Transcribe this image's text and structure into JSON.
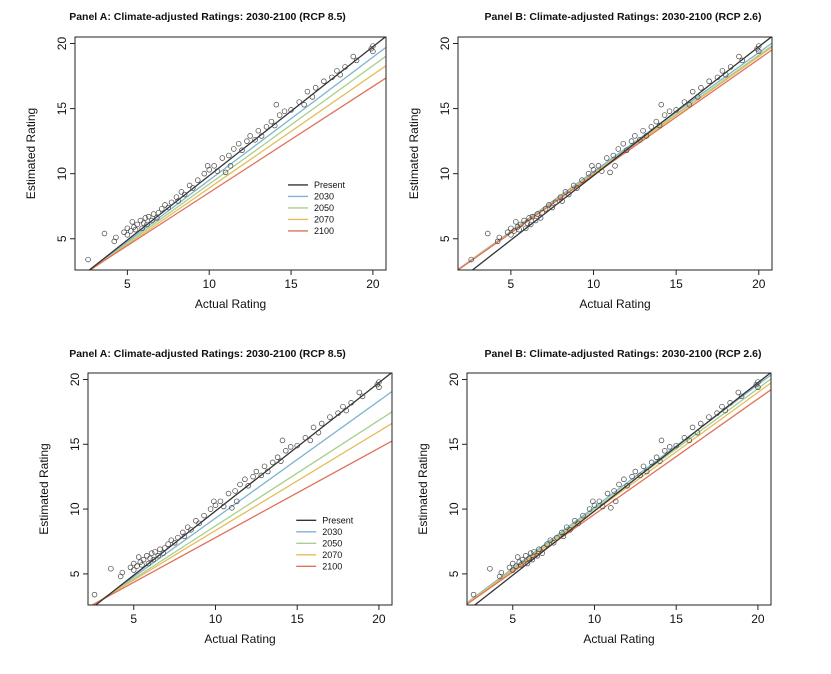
{
  "chart_data": [
    {
      "type": "scatter",
      "title": "Panel A: Climate-adjusted Ratings: 2030-2100 (RCP 8.5)",
      "xlabel": "Actual Rating",
      "ylabel": "Estimated Rating",
      "xlim": [
        1.8,
        20.8
      ],
      "ylim": [
        2.6,
        20.5
      ],
      "xticks": [
        5,
        10,
        15,
        20
      ],
      "yticks": [
        5,
        10,
        15,
        20
      ],
      "legend_position": "bottom-right",
      "points": [
        [
          2.6,
          3.4
        ],
        [
          3.6,
          5.4
        ],
        [
          4.2,
          4.8
        ],
        [
          4.3,
          5.1
        ],
        [
          4.8,
          5.5
        ],
        [
          5.0,
          5.3
        ],
        [
          5.0,
          5.8
        ],
        [
          5.2,
          5.6
        ],
        [
          5.3,
          6.3
        ],
        [
          5.4,
          5.9
        ],
        [
          5.5,
          5.7
        ],
        [
          5.6,
          6.1
        ],
        [
          5.8,
          6.4
        ],
        [
          5.9,
          5.8
        ],
        [
          6.0,
          6.2
        ],
        [
          6.1,
          6.6
        ],
        [
          6.2,
          6.1
        ],
        [
          6.3,
          6.7
        ],
        [
          6.5,
          6.4
        ],
        [
          6.6,
          6.9
        ],
        [
          6.8,
          6.6
        ],
        [
          6.9,
          7.0
        ],
        [
          7.1,
          7.3
        ],
        [
          7.3,
          7.6
        ],
        [
          7.5,
          7.4
        ],
        [
          7.7,
          7.8
        ],
        [
          8.0,
          8.2
        ],
        [
          8.1,
          7.9
        ],
        [
          8.3,
          8.6
        ],
        [
          8.5,
          8.4
        ],
        [
          8.8,
          9.1
        ],
        [
          9.0,
          8.9
        ],
        [
          9.3,
          9.5
        ],
        [
          9.7,
          10.0
        ],
        [
          9.9,
          10.6
        ],
        [
          10.0,
          10.3
        ],
        [
          10.3,
          10.6
        ],
        [
          10.5,
          10.2
        ],
        [
          10.8,
          11.2
        ],
        [
          11.0,
          10.1
        ],
        [
          11.2,
          11.4
        ],
        [
          11.3,
          10.6
        ],
        [
          11.5,
          11.9
        ],
        [
          11.8,
          12.3
        ],
        [
          12.0,
          11.8
        ],
        [
          12.3,
          12.5
        ],
        [
          12.5,
          12.9
        ],
        [
          12.8,
          12.6
        ],
        [
          13.0,
          13.3
        ],
        [
          13.2,
          12.9
        ],
        [
          13.5,
          13.6
        ],
        [
          13.8,
          14.0
        ],
        [
          14.0,
          13.7
        ],
        [
          14.1,
          15.3
        ],
        [
          14.3,
          14.5
        ],
        [
          14.6,
          14.8
        ],
        [
          15.0,
          14.9
        ],
        [
          15.5,
          15.5
        ],
        [
          15.8,
          15.3
        ],
        [
          16.0,
          16.3
        ],
        [
          16.3,
          15.9
        ],
        [
          16.5,
          16.6
        ],
        [
          17.0,
          17.1
        ],
        [
          17.5,
          17.4
        ],
        [
          17.8,
          17.9
        ],
        [
          18.0,
          17.6
        ],
        [
          18.3,
          18.2
        ],
        [
          18.8,
          19.0
        ],
        [
          19.0,
          18.7
        ],
        [
          19.9,
          19.6
        ],
        [
          20.0,
          19.8
        ],
        [
          20.0,
          19.4
        ]
      ],
      "series": [
        {
          "name": "Present",
          "color": "#333333",
          "intercept": -0.05,
          "slope": 0.99
        },
        {
          "name": "2030",
          "color": "#7fb3cf",
          "intercept": 0.05,
          "slope": 0.945
        },
        {
          "name": "2050",
          "color": "#a9cf8e",
          "intercept": 0.1,
          "slope": 0.91
        },
        {
          "name": "2070",
          "color": "#e3bd5a",
          "intercept": 0.2,
          "slope": 0.87
        },
        {
          "name": "2100",
          "color": "#e1715a",
          "intercept": 0.4,
          "slope": 0.815
        }
      ]
    },
    {
      "type": "scatter",
      "title": "Panel B: Climate-adjusted Ratings: 2030-2100 (RCP 2.6)",
      "xlabel": "Actual Rating",
      "ylabel": "Estimated Rating",
      "xlim": [
        1.8,
        20.8
      ],
      "ylim": [
        2.6,
        20.5
      ],
      "xticks": [
        5,
        10,
        15,
        20
      ],
      "yticks": [
        5,
        10,
        15,
        20
      ],
      "points": [
        [
          2.6,
          3.4
        ],
        [
          3.6,
          5.4
        ],
        [
          4.2,
          4.8
        ],
        [
          4.3,
          5.1
        ],
        [
          4.8,
          5.5
        ],
        [
          5.0,
          5.3
        ],
        [
          5.0,
          5.8
        ],
        [
          5.2,
          5.6
        ],
        [
          5.3,
          6.3
        ],
        [
          5.4,
          5.9
        ],
        [
          5.5,
          5.7
        ],
        [
          5.6,
          6.1
        ],
        [
          5.8,
          6.4
        ],
        [
          5.9,
          5.8
        ],
        [
          6.0,
          6.2
        ],
        [
          6.1,
          6.6
        ],
        [
          6.2,
          6.1
        ],
        [
          6.3,
          6.7
        ],
        [
          6.5,
          6.4
        ],
        [
          6.6,
          6.9
        ],
        [
          6.8,
          6.6
        ],
        [
          6.9,
          7.0
        ],
        [
          7.1,
          7.3
        ],
        [
          7.3,
          7.6
        ],
        [
          7.5,
          7.4
        ],
        [
          7.7,
          7.8
        ],
        [
          8.0,
          8.2
        ],
        [
          8.1,
          7.9
        ],
        [
          8.3,
          8.6
        ],
        [
          8.5,
          8.4
        ],
        [
          8.8,
          9.1
        ],
        [
          9.0,
          8.9
        ],
        [
          9.3,
          9.5
        ],
        [
          9.7,
          10.0
        ],
        [
          9.9,
          10.6
        ],
        [
          10.0,
          10.3
        ],
        [
          10.3,
          10.6
        ],
        [
          10.5,
          10.2
        ],
        [
          10.8,
          11.2
        ],
        [
          11.0,
          10.1
        ],
        [
          11.2,
          11.4
        ],
        [
          11.3,
          10.6
        ],
        [
          11.5,
          11.9
        ],
        [
          11.8,
          12.3
        ],
        [
          12.0,
          11.8
        ],
        [
          12.3,
          12.5
        ],
        [
          12.5,
          12.9
        ],
        [
          12.8,
          12.6
        ],
        [
          13.0,
          13.3
        ],
        [
          13.2,
          12.9
        ],
        [
          13.5,
          13.6
        ],
        [
          13.8,
          14.0
        ],
        [
          14.0,
          13.7
        ],
        [
          14.1,
          15.3
        ],
        [
          14.3,
          14.5
        ],
        [
          14.6,
          14.8
        ],
        [
          15.0,
          14.9
        ],
        [
          15.5,
          15.5
        ],
        [
          15.8,
          15.3
        ],
        [
          16.0,
          16.3
        ],
        [
          16.3,
          15.9
        ],
        [
          16.5,
          16.6
        ],
        [
          17.0,
          17.1
        ],
        [
          17.5,
          17.4
        ],
        [
          17.8,
          17.9
        ],
        [
          18.0,
          17.6
        ],
        [
          18.3,
          18.2
        ],
        [
          18.8,
          19.0
        ],
        [
          19.0,
          18.7
        ],
        [
          19.9,
          19.6
        ],
        [
          20.0,
          19.8
        ],
        [
          20.0,
          19.4
        ]
      ],
      "series": [
        {
          "name": "Present",
          "color": "#333333",
          "intercept": -0.05,
          "slope": 0.99
        },
        {
          "name": "2030",
          "color": "#7fb3cf",
          "intercept": 1.0,
          "slope": 0.915
        },
        {
          "name": "2050",
          "color": "#a9cf8e",
          "intercept": 1.0,
          "slope": 0.905
        },
        {
          "name": "2070",
          "color": "#e3bd5a",
          "intercept": 1.0,
          "slope": 0.9
        },
        {
          "name": "2100",
          "color": "#e1715a",
          "intercept": 1.0,
          "slope": 0.89
        }
      ]
    },
    {
      "type": "scatter",
      "title": "Panel A: Climate-adjusted Ratings: 2030-2100 (RCP 8.5)",
      "xlabel": "Actual Rating",
      "ylabel": "Estimated Rating",
      "xlim": [
        2.2,
        20.8
      ],
      "ylim": [
        2.6,
        20.5
      ],
      "xticks": [
        5,
        10,
        15,
        20
      ],
      "yticks": [
        5,
        10,
        15,
        20
      ],
      "legend_position": "bottom-right",
      "points": [
        [
          2.6,
          3.4
        ],
        [
          3.6,
          5.4
        ],
        [
          4.2,
          4.8
        ],
        [
          4.3,
          5.1
        ],
        [
          4.8,
          5.5
        ],
        [
          5.0,
          5.3
        ],
        [
          5.0,
          5.8
        ],
        [
          5.2,
          5.6
        ],
        [
          5.3,
          6.3
        ],
        [
          5.4,
          5.9
        ],
        [
          5.5,
          5.7
        ],
        [
          5.6,
          6.1
        ],
        [
          5.8,
          6.4
        ],
        [
          5.9,
          5.8
        ],
        [
          6.0,
          6.2
        ],
        [
          6.1,
          6.6
        ],
        [
          6.2,
          6.1
        ],
        [
          6.3,
          6.7
        ],
        [
          6.5,
          6.4
        ],
        [
          6.6,
          6.9
        ],
        [
          6.8,
          6.6
        ],
        [
          6.9,
          7.0
        ],
        [
          7.1,
          7.3
        ],
        [
          7.3,
          7.6
        ],
        [
          7.5,
          7.4
        ],
        [
          7.7,
          7.8
        ],
        [
          8.0,
          8.2
        ],
        [
          8.1,
          7.9
        ],
        [
          8.3,
          8.6
        ],
        [
          8.5,
          8.4
        ],
        [
          8.8,
          9.1
        ],
        [
          9.0,
          8.9
        ],
        [
          9.3,
          9.5
        ],
        [
          9.7,
          10.0
        ],
        [
          9.9,
          10.6
        ],
        [
          10.0,
          10.3
        ],
        [
          10.3,
          10.6
        ],
        [
          10.5,
          10.2
        ],
        [
          10.8,
          11.2
        ],
        [
          11.0,
          10.1
        ],
        [
          11.2,
          11.4
        ],
        [
          11.3,
          10.6
        ],
        [
          11.5,
          11.9
        ],
        [
          11.8,
          12.3
        ],
        [
          12.0,
          11.8
        ],
        [
          12.3,
          12.5
        ],
        [
          12.5,
          12.9
        ],
        [
          12.8,
          12.6
        ],
        [
          13.0,
          13.3
        ],
        [
          13.2,
          12.9
        ],
        [
          13.5,
          13.6
        ],
        [
          13.8,
          14.0
        ],
        [
          14.0,
          13.7
        ],
        [
          14.1,
          15.3
        ],
        [
          14.3,
          14.5
        ],
        [
          14.6,
          14.8
        ],
        [
          15.0,
          14.9
        ],
        [
          15.5,
          15.5
        ],
        [
          15.8,
          15.3
        ],
        [
          16.0,
          16.3
        ],
        [
          16.3,
          15.9
        ],
        [
          16.5,
          16.6
        ],
        [
          17.0,
          17.1
        ],
        [
          17.5,
          17.4
        ],
        [
          17.8,
          17.9
        ],
        [
          18.0,
          17.6
        ],
        [
          18.3,
          18.2
        ],
        [
          18.8,
          19.0
        ],
        [
          19.0,
          18.7
        ],
        [
          19.9,
          19.6
        ],
        [
          20.0,
          19.8
        ],
        [
          20.0,
          19.4
        ]
      ],
      "series": [
        {
          "name": "Present",
          "color": "#333333",
          "intercept": -0.05,
          "slope": 0.99
        },
        {
          "name": "2030",
          "color": "#7fb3cf",
          "intercept": 0.25,
          "slope": 0.905
        },
        {
          "name": "2050",
          "color": "#a9cf8e",
          "intercept": 0.55,
          "slope": 0.815
        },
        {
          "name": "2070",
          "color": "#e3bd5a",
          "intercept": 0.7,
          "slope": 0.765
        },
        {
          "name": "2100",
          "color": "#e1715a",
          "intercept": 0.9,
          "slope": 0.69
        }
      ]
    },
    {
      "type": "scatter",
      "title": "Panel B: Climate-adjusted Ratings: 2030-2100 (RCP 2.6)",
      "xlabel": "Actual Rating",
      "ylabel": "Estimated Rating",
      "xlim": [
        2.2,
        20.8
      ],
      "ylim": [
        2.6,
        20.5
      ],
      "xticks": [
        5,
        10,
        15,
        20
      ],
      "yticks": [
        5,
        10,
        15,
        20
      ],
      "points": [
        [
          2.6,
          3.4
        ],
        [
          3.6,
          5.4
        ],
        [
          4.2,
          4.8
        ],
        [
          4.3,
          5.1
        ],
        [
          4.8,
          5.5
        ],
        [
          5.0,
          5.3
        ],
        [
          5.0,
          5.8
        ],
        [
          5.2,
          5.6
        ],
        [
          5.3,
          6.3
        ],
        [
          5.4,
          5.9
        ],
        [
          5.5,
          5.7
        ],
        [
          5.6,
          6.1
        ],
        [
          5.8,
          6.4
        ],
        [
          5.9,
          5.8
        ],
        [
          6.0,
          6.2
        ],
        [
          6.1,
          6.6
        ],
        [
          6.2,
          6.1
        ],
        [
          6.3,
          6.7
        ],
        [
          6.5,
          6.4
        ],
        [
          6.6,
          6.9
        ],
        [
          6.8,
          6.6
        ],
        [
          6.9,
          7.0
        ],
        [
          7.1,
          7.3
        ],
        [
          7.3,
          7.6
        ],
        [
          7.5,
          7.4
        ],
        [
          7.7,
          7.8
        ],
        [
          8.0,
          8.2
        ],
        [
          8.1,
          7.9
        ],
        [
          8.3,
          8.6
        ],
        [
          8.5,
          8.4
        ],
        [
          8.8,
          9.1
        ],
        [
          9.0,
          8.9
        ],
        [
          9.3,
          9.5
        ],
        [
          9.7,
          10.0
        ],
        [
          9.9,
          10.6
        ],
        [
          10.0,
          10.3
        ],
        [
          10.3,
          10.6
        ],
        [
          10.5,
          10.2
        ],
        [
          10.8,
          11.2
        ],
        [
          11.0,
          10.1
        ],
        [
          11.2,
          11.4
        ],
        [
          11.3,
          10.6
        ],
        [
          11.5,
          11.9
        ],
        [
          11.8,
          12.3
        ],
        [
          12.0,
          11.8
        ],
        [
          12.3,
          12.5
        ],
        [
          12.5,
          12.9
        ],
        [
          12.8,
          12.6
        ],
        [
          13.0,
          13.3
        ],
        [
          13.2,
          12.9
        ],
        [
          13.5,
          13.6
        ],
        [
          13.8,
          14.0
        ],
        [
          14.0,
          13.7
        ],
        [
          14.1,
          15.3
        ],
        [
          14.3,
          14.5
        ],
        [
          14.6,
          14.8
        ],
        [
          15.0,
          14.9
        ],
        [
          15.5,
          15.5
        ],
        [
          15.8,
          15.3
        ],
        [
          16.0,
          16.3
        ],
        [
          16.3,
          15.9
        ],
        [
          16.5,
          16.6
        ],
        [
          17.0,
          17.1
        ],
        [
          17.5,
          17.4
        ],
        [
          17.8,
          17.9
        ],
        [
          18.0,
          17.6
        ],
        [
          18.3,
          18.2
        ],
        [
          18.8,
          19.0
        ],
        [
          19.0,
          18.7
        ],
        [
          19.9,
          19.6
        ],
        [
          20.0,
          19.8
        ],
        [
          20.0,
          19.4
        ]
      ],
      "series": [
        {
          "name": "Present",
          "color": "#333333",
          "intercept": -0.05,
          "slope": 0.99
        },
        {
          "name": "2030",
          "color": "#7fb3cf",
          "intercept": 0.7,
          "slope": 0.945
        },
        {
          "name": "2050",
          "color": "#a9cf8e",
          "intercept": 0.7,
          "slope": 0.93
        },
        {
          "name": "2070",
          "color": "#e3bd5a",
          "intercept": 0.7,
          "slope": 0.915
        },
        {
          "name": "2100",
          "color": "#e1715a",
          "intercept": 0.7,
          "slope": 0.89
        }
      ]
    }
  ]
}
